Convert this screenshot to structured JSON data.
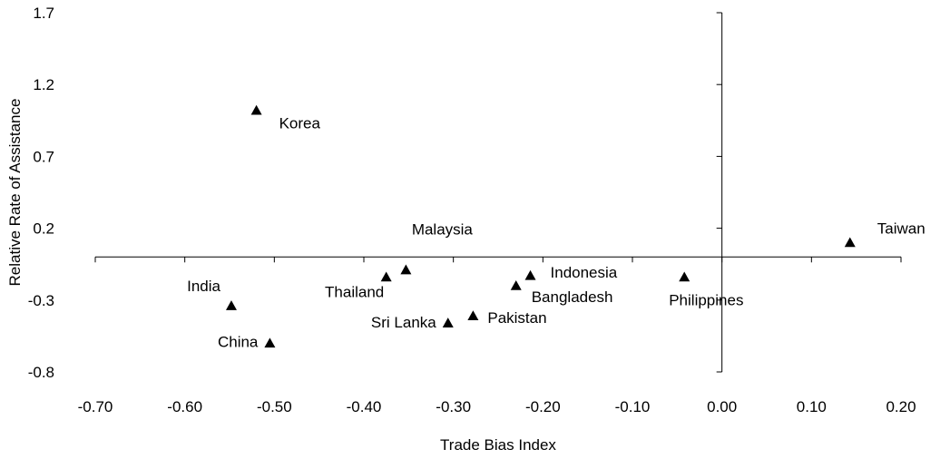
{
  "chart_data": {
    "type": "scatter",
    "title": "",
    "xlabel": "Trade Bias Index",
    "ylabel": "Relative Rate of Assistance",
    "xlim": [
      -0.7,
      0.2
    ],
    "ylim": [
      -0.8,
      1.7
    ],
    "xticks": [
      -0.7,
      -0.6,
      -0.5,
      -0.4,
      -0.3,
      -0.2,
      -0.1,
      0.0,
      0.1,
      0.2
    ],
    "xtick_labels": [
      "-0.70",
      "-0.60",
      "-0.50",
      "-0.40",
      "-0.30",
      "-0.20",
      "-0.10",
      "0.00",
      "0.10",
      "0.20"
    ],
    "yticks": [
      -0.8,
      -0.3,
      0.2,
      0.7,
      1.2,
      1.7
    ],
    "ytick_labels": [
      "-0.8",
      "-0.3",
      "0.2",
      "0.7",
      "1.2",
      "1.7"
    ],
    "marker": "triangle",
    "marker_color": "#000000",
    "grid": false,
    "points": [
      {
        "label": "Korea",
        "x": -0.52,
        "y": 1.02
      },
      {
        "label": "Taiwan",
        "x": 0.143,
        "y": 0.1
      },
      {
        "label": "Malaysia",
        "x": -0.353,
        "y": -0.09
      },
      {
        "label": "Thailand",
        "x": -0.375,
        "y": -0.14
      },
      {
        "label": "Indonesia",
        "x": -0.214,
        "y": -0.13
      },
      {
        "label": "Bangladesh",
        "x": -0.23,
        "y": -0.2
      },
      {
        "label": "Philippines",
        "x": -0.042,
        "y": -0.14
      },
      {
        "label": "India",
        "x": -0.548,
        "y": -0.34
      },
      {
        "label": "China",
        "x": -0.505,
        "y": -0.6
      },
      {
        "label": "Sri Lanka",
        "x": -0.306,
        "y": -0.46
      },
      {
        "label": "Pakistan",
        "x": -0.278,
        "y": -0.41
      }
    ]
  }
}
